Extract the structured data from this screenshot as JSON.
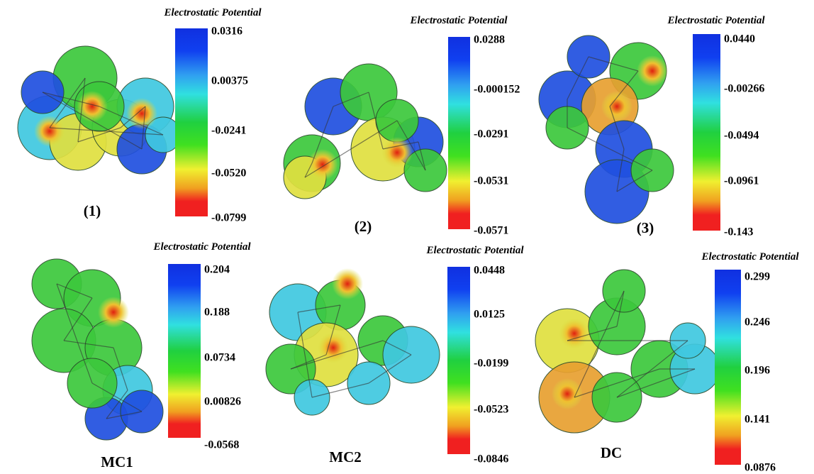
{
  "panels": [
    {
      "label": "(1)",
      "colorbar_title": "Electrostatic Potential",
      "ticks": [
        "0.0316",
        "0.00375",
        "-0.0241",
        "-0.0520",
        "-0.0799"
      ]
    },
    {
      "label": "(2)",
      "colorbar_title": "Electrostatic Potential",
      "ticks": [
        "0.0288",
        "-0.000152",
        "-0.0291",
        "-0.0531",
        "-0.0571"
      ]
    },
    {
      "label": "(3)",
      "colorbar_title": "Electrostatic Potential",
      "ticks": [
        "0.0440",
        "-0.00266",
        "-0.0494",
        "-0.0961",
        "-0.143"
      ]
    },
    {
      "label": "MC1",
      "colorbar_title": "Electrostatic Potential",
      "ticks": [
        "0.204",
        "0.188",
        "0.0734",
        "0.00826",
        "-0.0568"
      ]
    },
    {
      "label": "MC2",
      "colorbar_title": "Electrostatic Potential",
      "ticks": [
        "0.0448",
        "0.0125",
        "-0.0199",
        "-0.0523",
        "-0.0846"
      ]
    },
    {
      "label": "DC",
      "colorbar_title": "Electrostatic Potential",
      "ticks": [
        "0.299",
        "0.246",
        "0.196",
        "0.141",
        "0.0876"
      ]
    }
  ]
}
